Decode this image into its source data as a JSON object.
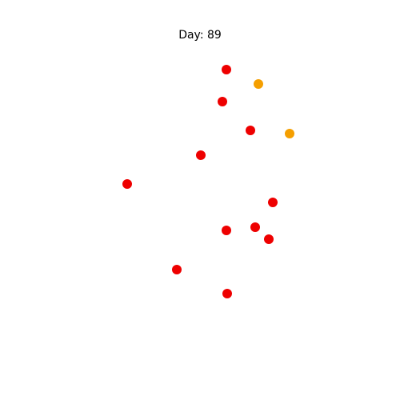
{
  "chart_data": {
    "type": "scatter",
    "title": "Day: 89",
    "xlabel": "",
    "ylabel": "",
    "axes_visible": false,
    "grid": false,
    "xlim": [
      0,
      100
    ],
    "ylim": [
      0,
      100
    ],
    "series": [
      {
        "color": "#ee0000",
        "points": [
          {
            "x": 56.6,
            "y": 82.6
          },
          {
            "x": 55.6,
            "y": 74.6
          },
          {
            "x": 62.6,
            "y": 67.4
          },
          {
            "x": 50.2,
            "y": 61.2
          },
          {
            "x": 31.8,
            "y": 54.0
          },
          {
            "x": 68.2,
            "y": 49.4
          },
          {
            "x": 63.8,
            "y": 43.2
          },
          {
            "x": 56.6,
            "y": 42.4
          },
          {
            "x": 67.2,
            "y": 40.2
          },
          {
            "x": 44.2,
            "y": 32.6
          },
          {
            "x": 56.8,
            "y": 26.6
          }
        ]
      },
      {
        "color": "#f59f00",
        "points": [
          {
            "x": 64.6,
            "y": 79.0
          },
          {
            "x": 72.4,
            "y": 66.6
          }
        ]
      }
    ]
  }
}
